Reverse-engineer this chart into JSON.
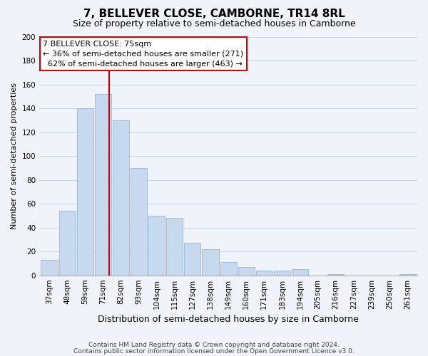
{
  "title": "7, BELLEVER CLOSE, CAMBORNE, TR14 8RL",
  "subtitle": "Size of property relative to semi-detached houses in Camborne",
  "xlabel": "Distribution of semi-detached houses by size in Camborne",
  "ylabel": "Number of semi-detached properties",
  "bar_labels": [
    "37sqm",
    "48sqm",
    "59sqm",
    "71sqm",
    "82sqm",
    "93sqm",
    "104sqm",
    "115sqm",
    "127sqm",
    "138sqm",
    "149sqm",
    "160sqm",
    "171sqm",
    "183sqm",
    "194sqm",
    "205sqm",
    "216sqm",
    "227sqm",
    "239sqm",
    "250sqm",
    "261sqm"
  ],
  "bar_values": [
    13,
    54,
    140,
    152,
    130,
    90,
    50,
    48,
    27,
    22,
    11,
    7,
    4,
    4,
    5,
    0,
    1,
    0,
    0,
    0,
    1
  ],
  "bar_color": "#c6d9ef",
  "bar_edge_color": "#a0bedb",
  "line_color": "#cc0000",
  "line_x_index": 3.36,
  "ylim": [
    0,
    200
  ],
  "yticks": [
    0,
    20,
    40,
    60,
    80,
    100,
    120,
    140,
    160,
    180,
    200
  ],
  "annotation_title": "7 BELLEVER CLOSE: 75sqm",
  "annotation_line1": "← 36% of semi-detached houses are smaller (271)",
  "annotation_line2": "  62% of semi-detached houses are larger (463) →",
  "footer_line1": "Contains HM Land Registry data © Crown copyright and database right 2024.",
  "footer_line2": "Contains public sector information licensed under the Open Government Licence v3.0.",
  "grid_color": "#c8d8e8",
  "background_color": "#f0f4fa",
  "title_fontsize": 11,
  "subtitle_fontsize": 9,
  "xlabel_fontsize": 9,
  "ylabel_fontsize": 8,
  "tick_fontsize": 7.5,
  "annotation_fontsize": 8,
  "footer_fontsize": 6.5
}
